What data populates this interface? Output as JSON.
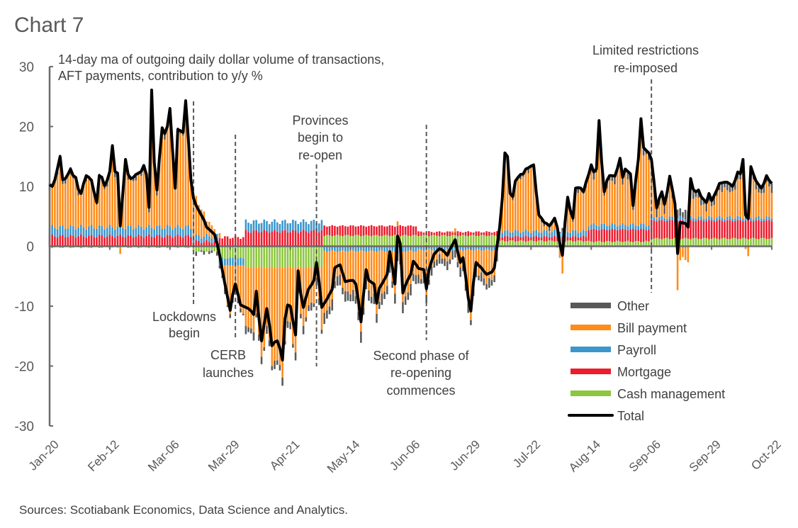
{
  "chart_data": {
    "type": "bar",
    "title": "Chart 7",
    "subtitle_lines": [
      "14-day ma of outgoing daily dollar volume of transactions,",
      "AFT payments, contribution to y/y %"
    ],
    "source": "Sources: Scotiabank Economics, Data Science and Analytics.",
    "xlabel": "",
    "ylabel": "",
    "ylim": [
      -30,
      30
    ],
    "yticks": [
      30,
      20,
      10,
      0,
      -10,
      -20,
      -30
    ],
    "x_start_date": "2020-01-20",
    "days": 277,
    "xtick_every_days": 23,
    "xtick_labels": [
      "Jan-20",
      "Feb-12",
      "Mar-06",
      "Mar-29",
      "Apr-21",
      "May-14",
      "Jun-06",
      "Jun-29",
      "Jul-22",
      "Aug-14",
      "Sep-06",
      "Sep-29",
      "Oct-22"
    ],
    "grid": false,
    "legend_position": "bottom-right",
    "stacked": true,
    "series_meta": [
      {
        "key": "other",
        "name": "Other",
        "color": "#595959"
      },
      {
        "key": "bill",
        "name": "Bill payment",
        "color": "#FF8C1A"
      },
      {
        "key": "payroll",
        "name": "Payroll",
        "color": "#3C96CC"
      },
      {
        "key": "mortgage",
        "name": "Mortgage",
        "color": "#EC1C2E"
      },
      {
        "key": "cash",
        "name": "Cash management",
        "color": "#8DC63F"
      },
      {
        "key": "total",
        "name": "Total",
        "color": "#000000",
        "kind": "line"
      }
    ],
    "legend_labels": [
      "Other",
      "Bill payment",
      "Payroll",
      "Mortgage",
      "Cash management",
      "Total"
    ],
    "component_profile_note": "Bill payment = Total - (Other + Payroll + Mortgage + Cash management)",
    "component_profile": [
      {
        "from_day": 0,
        "to_day": 54,
        "mortgage": 1.7,
        "payroll": 1.5,
        "cash": -0.2,
        "other": 0.8
      },
      {
        "from_day": 55,
        "to_day": 64,
        "mortgage": 0.8,
        "payroll": 0.9,
        "cash": -0.8,
        "other": -0.3
      },
      {
        "from_day": 65,
        "to_day": 74,
        "mortgage": 1.5,
        "payroll": -1.2,
        "cash": -2.0,
        "other": -0.6
      },
      {
        "from_day": 75,
        "to_day": 104,
        "mortgage": 2.5,
        "payroll": 1.6,
        "cash": -3.5,
        "other": -1.0
      },
      {
        "from_day": 105,
        "to_day": 140,
        "mortgage": 1.6,
        "payroll": -0.8,
        "cash": 1.8,
        "other": -1.5
      },
      {
        "from_day": 141,
        "to_day": 171,
        "mortgage": 0.6,
        "payroll": -0.6,
        "cash": 1.8,
        "other": -1.2
      },
      {
        "from_day": 172,
        "to_day": 205,
        "mortgage": 0.7,
        "payroll": 0.9,
        "cash": 0.9,
        "other": 0.5
      },
      {
        "from_day": 206,
        "to_day": 229,
        "mortgage": 2.0,
        "payroll": 0.8,
        "cash": 0.8,
        "other": 1.0
      },
      {
        "from_day": 230,
        "to_day": 276,
        "mortgage": 3.0,
        "payroll": 0.5,
        "cash": 1.3,
        "other": 1.2
      }
    ],
    "total": [
      10.3,
      10,
      11.1,
      13,
      15,
      11.1,
      11.3,
      12,
      12.9,
      11.8,
      11.5,
      9.5,
      8.8,
      10.5,
      11.8,
      11.5,
      11,
      9,
      7.3,
      11.8,
      11.5,
      10.1,
      11,
      12.5,
      16.8,
      12.5,
      12.2,
      3.4,
      9,
      14.5,
      12,
      11.3,
      11.5,
      12,
      12.2,
      12.5,
      13.5,
      12,
      6.5,
      26.1,
      14,
      9.4,
      15,
      19.8,
      18.8,
      20,
      23,
      16,
      9.7,
      19.5,
      19.3,
      19,
      24.3,
      18,
      11.1,
      8,
      6.8,
      6,
      5.2,
      4.4,
      3.2,
      2.8,
      2.4,
      2,
      0.5,
      -1.5,
      -4,
      -6.3,
      -8.5,
      -10.7,
      -8,
      -6.3,
      -8,
      -9.8,
      -10,
      -10.2,
      -10.4,
      -10.8,
      -11.4,
      -7.5,
      -12,
      -15.8,
      -13,
      -10.4,
      -13,
      -16.6,
      -16,
      -15.8,
      -17,
      -19,
      -12,
      -9.8,
      -10,
      -12.5,
      -14.8,
      -4.1,
      -8,
      -10.2,
      -8.5,
      -7.1,
      -6.5,
      -5.7,
      -2.7,
      -6,
      -10.2,
      -9.5,
      -8.8,
      -8,
      -7.2,
      -3.6,
      -3.3,
      -3.1,
      -4.5,
      -5.9,
      -5.8,
      -5.7,
      -5.7,
      -6.3,
      -9,
      -12.6,
      -8,
      -3.9,
      -5.7,
      -6,
      -6.3,
      -9.5,
      -7,
      -6.3,
      -5.5,
      -4.7,
      -0.9,
      -3.5,
      -6.3,
      1.7,
      0.5,
      -7.8,
      -6.5,
      -5.5,
      -4.7,
      -2.5,
      -3,
      -3.7,
      -3.8,
      -3.9,
      -7.1,
      -3.9,
      -2.5,
      -1.3,
      -0.8,
      -0.4,
      -0.6,
      -1,
      -1.5,
      -0.5,
      0.3,
      1.1,
      -1,
      -2.7,
      -1.9,
      -5,
      -8.6,
      -10.8,
      -6,
      -2.7,
      -3.2,
      -3.6,
      -4.2,
      -4.7,
      -4.5,
      -4.3,
      -3.6,
      0,
      3.2,
      7.9,
      15.6,
      15,
      8.8,
      8.3,
      10.9,
      11.5,
      12,
      12.1,
      12.9,
      13.1,
      13.4,
      13.6,
      9,
      5.2,
      4.7,
      4,
      3.8,
      3.4,
      4,
      4.7,
      3.2,
      0.5,
      -1.5,
      4,
      8.2,
      6,
      4.7,
      9.7,
      9.8,
      9.7,
      9.1,
      10.7,
      12,
      13.6,
      12.4,
      12.9,
      21,
      14,
      9.1,
      11,
      11.8,
      11.8,
      11.7,
      13,
      14.7,
      11.5,
      12.9,
      12.5,
      12.1,
      6.8,
      11,
      14.5,
      21.3,
      16.5,
      16,
      15.6,
      14.5,
      10.7,
      6.4,
      8,
      9.1,
      7,
      9,
      11.7,
      9.5,
      7.1,
      -1.2,
      4,
      3.9,
      3.8,
      3.2,
      11.3,
      9.5,
      9.1,
      9.4,
      8.3,
      7.8,
      7.3,
      8.8,
      7.6,
      8.5,
      9.4,
      10.5,
      10.6,
      10.7,
      10.7,
      10.4,
      10,
      11,
      12.4,
      12.1,
      14.5,
      5.2,
      4.6,
      13.3,
      12,
      10.9,
      10.3,
      9.7,
      10.5,
      11.8,
      11,
      10.5
    ],
    "annotations": [
      {
        "lines": [
          "Lockdowns",
          "begin"
        ],
        "day": 55
      },
      {
        "lines": [
          "CERB",
          "launches"
        ],
        "day": 71
      },
      {
        "lines": [
          "Provinces",
          "begin to",
          "re-open"
        ],
        "day": 102
      },
      {
        "lines": [
          "Second phase of",
          "re-opening",
          "commences"
        ],
        "day": 144
      },
      {
        "lines": [
          "Limited restrictions",
          "re-imposed"
        ],
        "day": 230
      }
    ]
  }
}
